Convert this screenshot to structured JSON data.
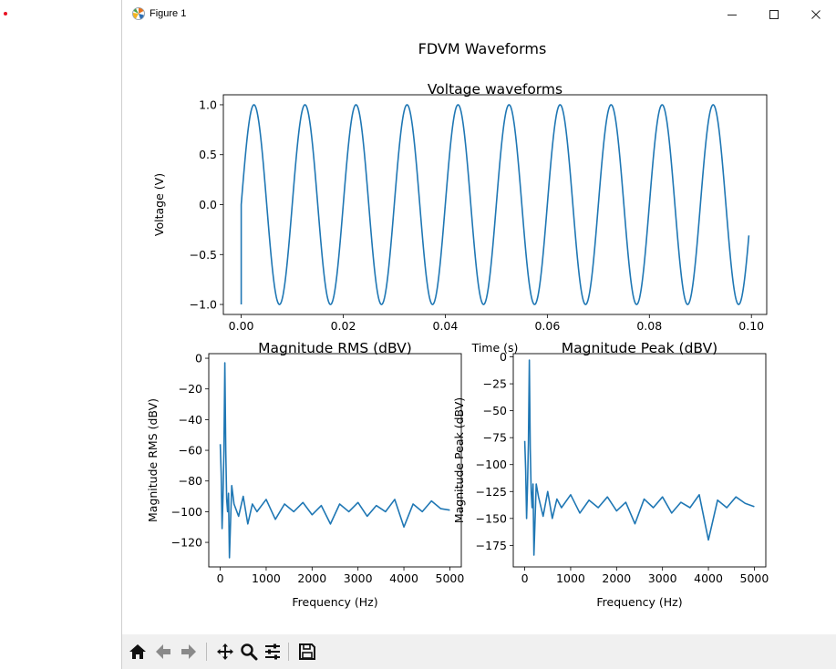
{
  "window": {
    "title": "Figure 1"
  },
  "figure": {
    "suptitle": "FDVM Waveforms",
    "line_color": "#1f77b4"
  },
  "chart_data": [
    {
      "type": "line",
      "title": "Voltage waveforms",
      "xlabel": "Time (s)",
      "ylabel": "Voltage (V)",
      "xlim": [
        -0.0035,
        0.103
      ],
      "ylim": [
        -1.1,
        1.1
      ],
      "xticks": [
        0.0,
        0.02,
        0.04,
        0.06,
        0.08,
        0.1
      ],
      "xtick_labels": [
        "0.00",
        "0.02",
        "0.04",
        "0.06",
        "0.08",
        "0.10"
      ],
      "yticks": [
        -1.0,
        -0.5,
        0.0,
        0.5,
        1.0
      ],
      "ytick_labels": [
        "−1.0",
        "−0.5",
        "0.0",
        "0.5",
        "1.0"
      ],
      "grid": false,
      "series": [
        {
          "description": "sine wave, amplitude 1 V, frequency 100 Hz, from t = 0 to 0.0995 s",
          "amplitude": 1.0,
          "frequency_hz": 100,
          "x_start": 0.0,
          "x_end": 0.0995
        }
      ]
    },
    {
      "type": "line",
      "title": "Magnitude RMS (dBV)",
      "xlabel": "Frequency (Hz)",
      "ylabel": "Magnitude RMS (dBV)",
      "xlim": [
        -250,
        5250
      ],
      "ylim": [
        -136,
        3
      ],
      "xticks": [
        0,
        1000,
        2000,
        3000,
        4000,
        5000
      ],
      "xtick_labels": [
        "0",
        "1000",
        "2000",
        "3000",
        "4000",
        "5000"
      ],
      "yticks": [
        0,
        -20,
        -40,
        -60,
        -80,
        -100,
        -120
      ],
      "ytick_labels": [
        "0",
        "−20",
        "−40",
        "−60",
        "−80",
        "−100",
        "−120"
      ],
      "grid": false,
      "peak": {
        "x": 100,
        "y": -3
      },
      "x": [
        0,
        20,
        40,
        60,
        80,
        100,
        120,
        140,
        160,
        180,
        200,
        250,
        300,
        400,
        500,
        600,
        700,
        800,
        1000,
        1200,
        1400,
        1600,
        1800,
        2000,
        2200,
        2400,
        2600,
        2800,
        3000,
        3200,
        3400,
        3600,
        3800,
        4000,
        4200,
        4400,
        4600,
        4800,
        5000
      ],
      "y": [
        -56,
        -75,
        -111,
        -90,
        -60,
        -3,
        -60,
        -92,
        -100,
        -88,
        -130,
        -83,
        -95,
        -103,
        -90,
        -108,
        -95,
        -100,
        -92,
        -105,
        -95,
        -100,
        -94,
        -102,
        -96,
        -108,
        -95,
        -100,
        -94,
        -103,
        -96,
        -100,
        -92,
        -110,
        -95,
        -100,
        -93,
        -98,
        -99
      ]
    },
    {
      "type": "line",
      "title": "Magnitude Peak (dBV)",
      "xlabel": "Frequency (Hz)",
      "ylabel": "Magnitude Peak (dBV)",
      "xlim": [
        -250,
        5250
      ],
      "ylim": [
        -195,
        3
      ],
      "xticks": [
        0,
        1000,
        2000,
        3000,
        4000,
        5000
      ],
      "xtick_labels": [
        "0",
        "1000",
        "2000",
        "3000",
        "4000",
        "5000"
      ],
      "yticks": [
        0,
        -25,
        -50,
        -75,
        -100,
        -125,
        -150,
        -175
      ],
      "ytick_labels": [
        "0",
        "−25",
        "−50",
        "−75",
        "−100",
        "−125",
        "−150",
        "−175"
      ],
      "grid": false,
      "peak": {
        "x": 100,
        "y": -3
      },
      "x": [
        0,
        20,
        40,
        60,
        80,
        100,
        120,
        140,
        160,
        180,
        200,
        250,
        300,
        400,
        500,
        600,
        700,
        800,
        1000,
        1200,
        1400,
        1600,
        1800,
        2000,
        2200,
        2400,
        2600,
        2800,
        3000,
        3200,
        3400,
        3600,
        3800,
        4000,
        4200,
        4400,
        4600,
        4800,
        5000
      ],
      "y": [
        -78,
        -105,
        -150,
        -120,
        -80,
        -3,
        -85,
        -125,
        -140,
        -118,
        -184,
        -118,
        -130,
        -148,
        -125,
        -150,
        -132,
        -140,
        -128,
        -145,
        -133,
        -140,
        -130,
        -143,
        -135,
        -155,
        -132,
        -140,
        -130,
        -145,
        -135,
        -140,
        -128,
        -170,
        -133,
        -140,
        -130,
        -136,
        -139
      ]
    }
  ],
  "toolbar": {
    "icons": [
      "home-icon",
      "back-icon",
      "forward-icon",
      "pan-icon",
      "zoom-icon",
      "configure-subplots-icon",
      "save-icon"
    ]
  }
}
